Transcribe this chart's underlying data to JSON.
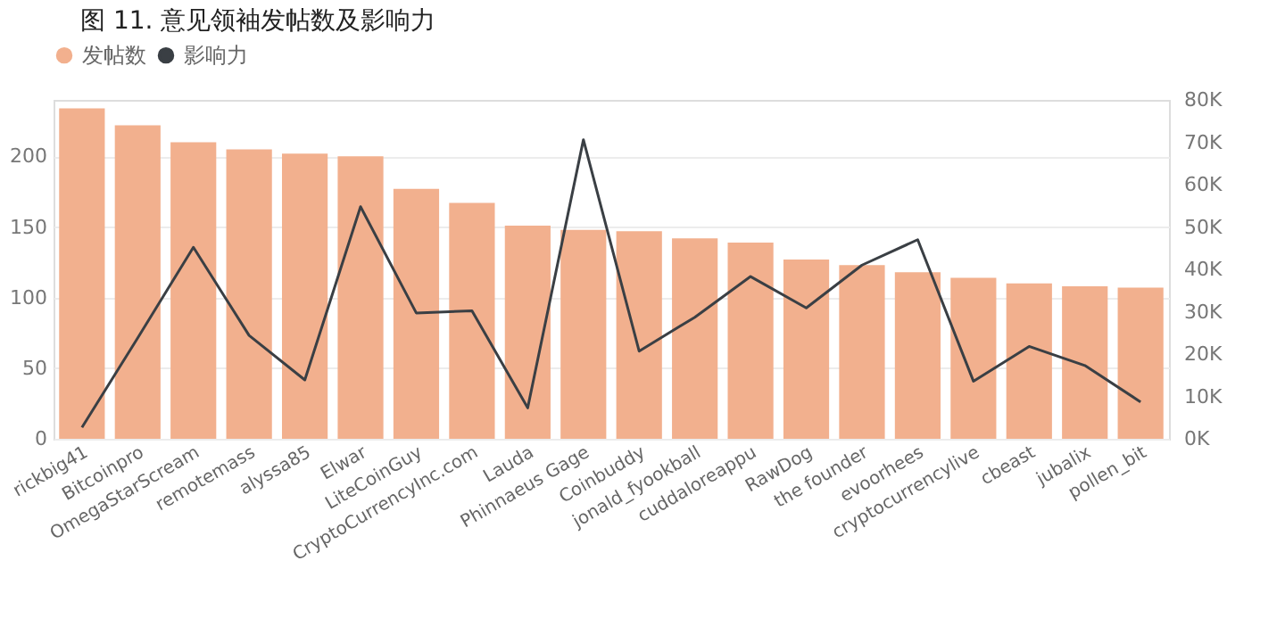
{
  "chart_data": {
    "type": "bar",
    "title": "图 11. 意见领袖发帖数及影响力",
    "categories": [
      "rickbig41",
      "Bitcoinpro",
      "OmegaStarScream",
      "remotemass",
      "alyssa85",
      "Elwar",
      "LiteCoinGuy",
      "CryptoCurrencyInc.com",
      "Lauda",
      "Phinnaeus Gage",
      "Coinbuddy",
      "jonald_fyookball",
      "cuddaloreappu",
      "RawDog",
      "the founder",
      "evoorhees",
      "cryptocurrencylive",
      "cbeast",
      "jubalix",
      "pollen_bit"
    ],
    "series": [
      {
        "name": "发帖数",
        "color": "#f2b08e",
        "values": [
          234,
          222,
          210,
          205,
          202,
          200,
          177,
          167,
          151,
          148,
          147,
          142,
          139,
          127,
          123,
          118,
          114,
          110,
          108,
          107
        ]
      },
      {
        "name": "影响力",
        "type": "line",
        "axis": "y2",
        "color": "#3a3f44",
        "values": [
          2700,
          23800,
          45200,
          24400,
          13900,
          54800,
          29700,
          30200,
          7300,
          70600,
          20700,
          28700,
          38300,
          30900,
          41000,
          47000,
          13600,
          21800,
          17300,
          8700
        ]
      }
    ],
    "ylim": [
      0,
      240
    ],
    "yticks": [
      0,
      50,
      100,
      150,
      200
    ],
    "y2lim": [
      0,
      80000
    ],
    "y2ticks": [
      {
        "value": 0,
        "label": "0K"
      },
      {
        "value": 10000,
        "label": "10K"
      },
      {
        "value": 20000,
        "label": "20K"
      },
      {
        "value": 30000,
        "label": "30K"
      },
      {
        "value": 40000,
        "label": "40K"
      },
      {
        "value": 50000,
        "label": "50K"
      },
      {
        "value": 60000,
        "label": "60K"
      },
      {
        "value": 70000,
        "label": "70K"
      },
      {
        "value": 80000,
        "label": "80K"
      }
    ],
    "grid": "y",
    "legend": "top left",
    "marker": "none",
    "line_style": "solid"
  }
}
